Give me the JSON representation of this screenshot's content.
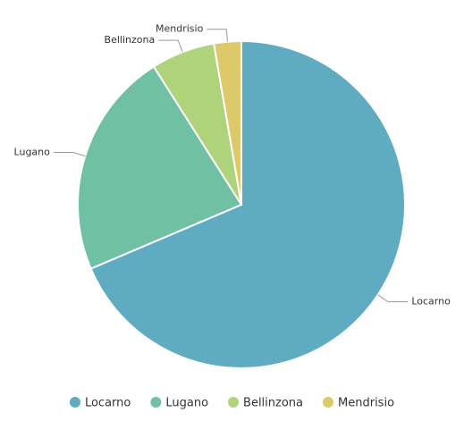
{
  "chart_data": {
    "type": "pie",
    "categories": [
      "Locarno",
      "Lugano",
      "Bellinzona",
      "Mendrisio"
    ],
    "values": [
      68.6,
      22.4,
      6.3,
      2.7
    ],
    "colors": [
      "#5fabc1",
      "#70c1a3",
      "#aed37a",
      "#dcc96a"
    ]
  }
}
